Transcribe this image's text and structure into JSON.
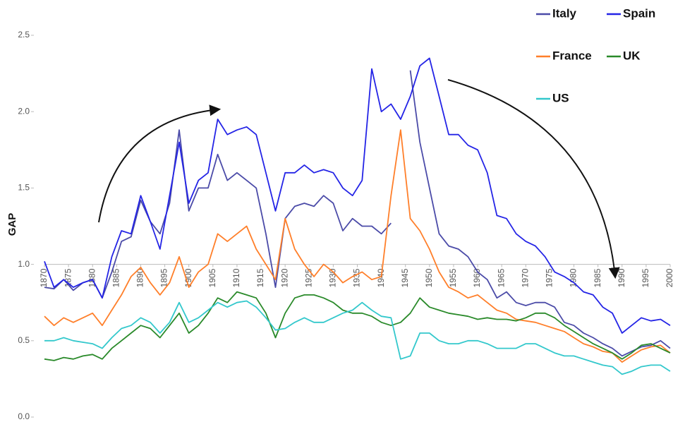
{
  "chart_data": {
    "type": "line",
    "y_label": "GAP",
    "x": [
      1870,
      1872,
      1874,
      1876,
      1878,
      1880,
      1882,
      1884,
      1886,
      1888,
      1890,
      1892,
      1894,
      1896,
      1898,
      1900,
      1902,
      1904,
      1906,
      1908,
      1910,
      1912,
      1914,
      1916,
      1918,
      1920,
      1922,
      1924,
      1926,
      1928,
      1930,
      1932,
      1934,
      1936,
      1938,
      1940,
      1942,
      1944,
      1946,
      1948,
      1950,
      1952,
      1954,
      1956,
      1958,
      1960,
      1962,
      1964,
      1966,
      1968,
      1970,
      1972,
      1974,
      1976,
      1978,
      1980,
      1982,
      1984,
      1986,
      1988,
      1990,
      1992,
      1994,
      1996,
      1998,
      2000
    ],
    "series": [
      {
        "name": "Italy",
        "color": "#4b4ba8",
        "values": [
          0.85,
          0.84,
          0.9,
          0.83,
          0.88,
          0.9,
          0.78,
          0.95,
          1.15,
          1.18,
          1.42,
          1.28,
          1.2,
          1.4,
          1.88,
          1.35,
          1.5,
          1.5,
          1.72,
          1.55,
          1.6,
          1.55,
          1.5,
          1.2,
          0.85,
          1.3,
          1.38,
          1.4,
          1.38,
          1.45,
          1.4,
          1.22,
          1.3,
          1.25,
          1.25,
          1.2,
          1.27,
          null,
          2.27,
          1.8,
          1.5,
          1.2,
          1.12,
          1.1,
          1.05,
          0.95,
          0.9,
          0.78,
          0.82,
          0.75,
          0.73,
          0.75,
          0.75,
          0.72,
          0.62,
          0.6,
          0.55,
          0.52,
          0.48,
          0.45,
          0.4,
          0.43,
          0.46,
          0.47,
          0.5,
          0.45
        ]
      },
      {
        "name": "Spain",
        "color": "#2424e6",
        "values": [
          1.02,
          0.85,
          0.9,
          0.85,
          0.88,
          0.9,
          0.78,
          1.05,
          1.22,
          1.2,
          1.45,
          1.28,
          1.1,
          1.45,
          1.8,
          1.4,
          1.55,
          1.6,
          1.95,
          1.85,
          1.88,
          1.9,
          1.85,
          1.6,
          1.35,
          1.6,
          1.6,
          1.65,
          1.6,
          1.62,
          1.6,
          1.5,
          1.45,
          1.55,
          2.28,
          2.0,
          2.05,
          1.95,
          2.1,
          2.3,
          2.35,
          2.1,
          1.85,
          1.85,
          1.78,
          1.75,
          1.6,
          1.32,
          1.3,
          1.2,
          1.15,
          1.12,
          1.05,
          0.95,
          0.92,
          0.88,
          0.82,
          0.8,
          0.72,
          0.68,
          0.55,
          0.6,
          0.65,
          0.63,
          0.64,
          0.6
        ]
      },
      {
        "name": "France",
        "color": "#ff7f2a",
        "values": [
          0.66,
          0.6,
          0.65,
          0.62,
          0.65,
          0.68,
          0.6,
          0.7,
          0.8,
          0.92,
          0.98,
          0.88,
          0.8,
          0.88,
          1.05,
          0.85,
          0.95,
          1.0,
          1.2,
          1.15,
          1.2,
          1.25,
          1.1,
          1.0,
          0.9,
          1.3,
          1.1,
          1.0,
          0.92,
          1.0,
          0.95,
          0.88,
          0.92,
          0.95,
          0.9,
          0.92,
          1.45,
          1.88,
          1.3,
          1.22,
          1.1,
          0.95,
          0.85,
          0.82,
          0.78,
          0.8,
          0.75,
          0.7,
          0.68,
          0.64,
          0.63,
          0.62,
          0.6,
          0.58,
          0.56,
          0.52,
          0.48,
          0.46,
          0.43,
          0.42,
          0.36,
          0.4,
          0.44,
          0.46,
          0.47,
          0.42
        ]
      },
      {
        "name": "UK",
        "color": "#2a8a2a",
        "values": [
          0.38,
          0.37,
          0.39,
          0.38,
          0.4,
          0.41,
          0.38,
          0.45,
          0.5,
          0.55,
          0.6,
          0.58,
          0.52,
          0.6,
          0.68,
          0.55,
          0.6,
          0.68,
          0.78,
          0.75,
          0.82,
          0.8,
          0.78,
          0.68,
          0.52,
          0.68,
          0.78,
          0.8,
          0.8,
          0.78,
          0.75,
          0.7,
          0.68,
          0.68,
          0.66,
          0.62,
          0.6,
          0.62,
          0.68,
          0.78,
          0.72,
          0.7,
          0.68,
          0.67,
          0.66,
          0.64,
          0.65,
          0.64,
          0.64,
          0.63,
          0.65,
          0.68,
          0.68,
          0.65,
          0.6,
          0.56,
          0.52,
          0.48,
          0.45,
          0.42,
          0.38,
          0.42,
          0.47,
          0.48,
          0.45,
          0.42
        ]
      },
      {
        "name": "US",
        "color": "#33c8cc",
        "values": [
          0.5,
          0.5,
          0.52,
          0.5,
          0.49,
          0.48,
          0.45,
          0.52,
          0.58,
          0.6,
          0.65,
          0.62,
          0.55,
          0.62,
          0.75,
          0.62,
          0.65,
          0.7,
          0.75,
          0.72,
          0.75,
          0.76,
          0.72,
          0.65,
          0.57,
          0.58,
          0.62,
          0.65,
          0.62,
          0.62,
          0.65,
          0.68,
          0.7,
          0.75,
          0.7,
          0.66,
          0.65,
          0.38,
          0.4,
          0.55,
          0.55,
          0.5,
          0.48,
          0.48,
          0.5,
          0.5,
          0.48,
          0.45,
          0.45,
          0.45,
          0.48,
          0.48,
          0.45,
          0.42,
          0.4,
          0.4,
          0.38,
          0.36,
          0.34,
          0.33,
          0.28,
          0.3,
          0.33,
          0.34,
          0.34,
          0.3
        ]
      }
    ],
    "xlim": [
      1870,
      2000
    ],
    "xticks": [
      1870,
      1875,
      1880,
      1885,
      1890,
      1895,
      1900,
      1905,
      1910,
      1915,
      1920,
      1925,
      1930,
      1935,
      1940,
      1945,
      1950,
      1955,
      1960,
      1965,
      1970,
      1975,
      1980,
      1985,
      1990,
      1995,
      2000
    ],
    "x_axis_at": 1,
    "ylim": [
      0,
      2.5
    ],
    "yticks": [
      {
        "value": 0,
        "label": "0.0"
      },
      0.5,
      {
        "value": 1,
        "label": "1.0"
      },
      1.5,
      {
        "value": 2,
        "label": "2.0"
      },
      2.5
    ],
    "legend": "top-right"
  }
}
